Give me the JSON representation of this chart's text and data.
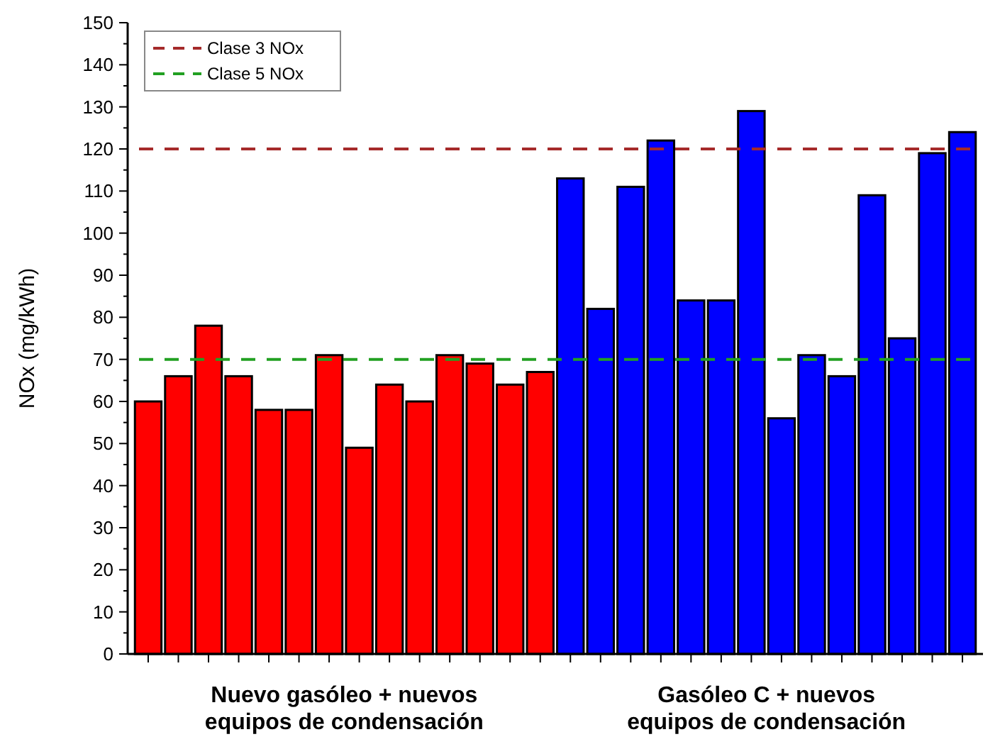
{
  "chart_data": {
    "type": "bar",
    "ylabel": "NOx (mg/kWh)",
    "categories": [
      null,
      null,
      null,
      null,
      null,
      null,
      null,
      null,
      null,
      null,
      null,
      null,
      null,
      null,
      null,
      null,
      null,
      null,
      null,
      null,
      null,
      null,
      null,
      null,
      null,
      null,
      null,
      null
    ],
    "values": [
      60,
      66,
      78,
      66,
      58,
      58,
      71,
      49,
      64,
      60,
      71,
      69,
      64,
      67,
      113,
      82,
      111,
      122,
      84,
      84,
      129,
      56,
      71,
      66,
      109,
      75,
      119,
      124
    ],
    "colors": [
      "#ff0000",
      "#ff0000",
      "#ff0000",
      "#ff0000",
      "#ff0000",
      "#ff0000",
      "#ff0000",
      "#ff0000",
      "#ff0000",
      "#ff0000",
      "#ff0000",
      "#ff0000",
      "#ff0000",
      "#ff0000",
      "#0000ff",
      "#0000ff",
      "#0000ff",
      "#0000ff",
      "#0000ff",
      "#0000ff",
      "#0000ff",
      "#0000ff",
      "#0000ff",
      "#0000ff",
      "#0000ff",
      "#0000ff",
      "#0000ff",
      "#0000ff"
    ],
    "ylim": [
      0,
      150
    ],
    "yticks": [
      0,
      10,
      20,
      30,
      40,
      50,
      60,
      70,
      80,
      90,
      100,
      110,
      120,
      130,
      140,
      150
    ],
    "ref_lines": [
      {
        "axis": "y",
        "value": 120,
        "label": "Clase 3 NOx",
        "color": "#a52a2a",
        "line_style": "dashed"
      },
      {
        "axis": "y",
        "value": 70,
        "label": "Clase 5 NOx",
        "color": "#22a022",
        "line_style": "dashed"
      }
    ],
    "annotations": [
      "Nuevo gasóleo + nuevos equipos de condensación",
      "Gasóleo C + nuevos equipos de condensación"
    ],
    "legend": "top left",
    "grid": false
  }
}
